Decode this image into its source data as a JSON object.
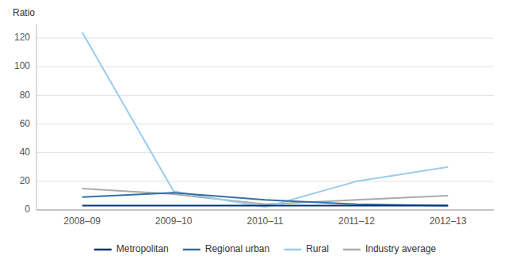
{
  "chart_data": {
    "type": "line",
    "ylabel": "Ratio",
    "categories": [
      "2008–09",
      "2009–10",
      "2010–11",
      "2011–12",
      "2012–13"
    ],
    "series": [
      {
        "name": "Metropolitan",
        "color": "#00337a",
        "values": [
          3,
          3,
          3,
          3,
          3
        ]
      },
      {
        "name": "Regional urban",
        "color": "#336fa8",
        "values": [
          9,
          12,
          7,
          4,
          3
        ]
      },
      {
        "name": "Rural",
        "color": "#99ccee",
        "values": [
          124,
          13,
          2,
          20,
          30
        ]
      },
      {
        "name": "Industry average",
        "color": "#aaaaaa",
        "values": [
          15,
          11,
          4,
          7,
          10
        ]
      }
    ],
    "ylim": [
      0,
      130
    ],
    "yticks": [
      0,
      20,
      40,
      60,
      80,
      100,
      120
    ],
    "grid": true,
    "legend": "bottom"
  }
}
